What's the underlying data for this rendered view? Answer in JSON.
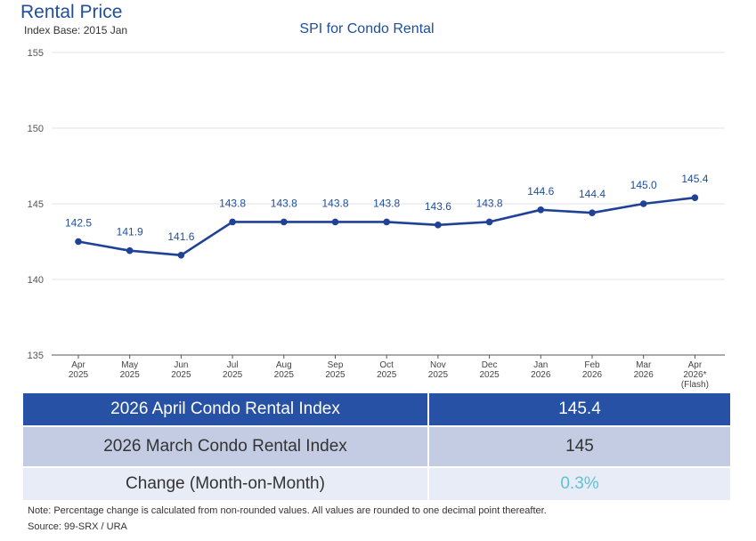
{
  "header": {
    "title": "Rental Price",
    "index_base": "Index Base: 2015 Jan",
    "chart_title": "SPI for Condo Rental"
  },
  "chart_data": {
    "type": "line",
    "title": "SPI for Condo Rental",
    "categories": [
      [
        "Apr",
        "2025"
      ],
      [
        "May",
        "2025"
      ],
      [
        "Jun",
        "2025"
      ],
      [
        "Jul",
        "2025"
      ],
      [
        "Aug",
        "2025"
      ],
      [
        "Sep",
        "2025"
      ],
      [
        "Oct",
        "2025"
      ],
      [
        "Nov",
        "2025"
      ],
      [
        "Dec",
        "2025"
      ],
      [
        "Jan",
        "2026"
      ],
      [
        "Feb",
        "2026"
      ],
      [
        "Mar",
        "2026"
      ],
      [
        "Apr",
        "2026*",
        "(Flash)"
      ]
    ],
    "values": [
      142.5,
      141.9,
      141.6,
      143.8,
      143.8,
      143.8,
      143.8,
      143.6,
      143.8,
      144.6,
      144.4,
      145.0,
      145.4
    ],
    "data_labels": [
      "142.5",
      "141.9",
      "141.6",
      "143.8",
      "143.8",
      "143.8",
      "143.8",
      "143.6",
      "143.8",
      "144.6",
      "144.4",
      "145.0",
      "145.4"
    ],
    "yticks": [
      135,
      140,
      145,
      150,
      155
    ],
    "ylim": [
      135,
      155
    ],
    "grid": true,
    "line_color": "#1f4196",
    "label_color": "#1f4e9c"
  },
  "table": {
    "rows": [
      {
        "label": "2026 April Condo Rental Index",
        "value": "145.4"
      },
      {
        "label": "2026 March Condo Rental Index",
        "value": "145"
      },
      {
        "label": "Change (Month-on-Month)",
        "value": "0.3%"
      }
    ]
  },
  "footer": {
    "note": "Note: Percentage change is calculated from non-rounded values.  All values are rounded to one decimal point thereafter.",
    "source": "Source: 99-SRX / URA"
  },
  "colors": {
    "title": "#1f4e9c",
    "table_header": "#2651a4",
    "table_row2": "#c3cce3",
    "table_row3": "#e8ecf6",
    "change_value": "#5bc4d4"
  }
}
